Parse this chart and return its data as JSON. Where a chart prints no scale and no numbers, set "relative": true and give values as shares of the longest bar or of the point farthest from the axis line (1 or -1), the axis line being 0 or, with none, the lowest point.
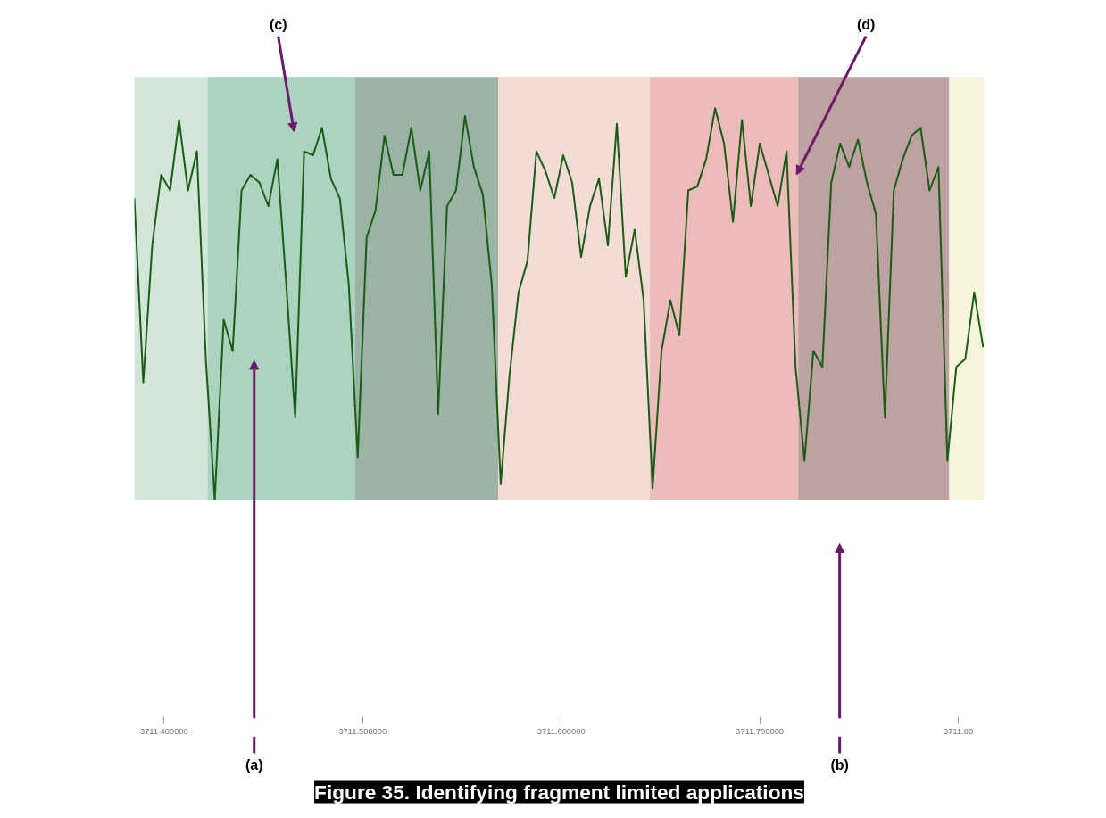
{
  "chart_data": {
    "type": "line",
    "title": "Figure 35. Identifying fragment limited applications",
    "relative": true,
    "x": [
      3711.385,
      3711.3895,
      3711.394,
      3711.3985,
      3711.403,
      3711.4075,
      3711.412,
      3711.4165,
      3711.421,
      3711.4255,
      3711.43,
      3711.4345,
      3711.439,
      3711.4435,
      3711.448,
      3711.4525,
      3711.457,
      3711.4615,
      3711.466,
      3711.4705,
      3711.475,
      3711.4795,
      3711.484,
      3711.4885,
      3711.493,
      3711.4975,
      3711.502,
      3711.5065,
      3711.511,
      3711.5155,
      3711.52,
      3711.5245,
      3711.529,
      3711.5335,
      3711.538,
      3711.5425,
      3711.547,
      3711.5515,
      3711.556,
      3711.5605,
      3711.565,
      3711.5695,
      3711.574,
      3711.5785,
      3711.583,
      3711.5875,
      3711.592,
      3711.5965,
      3711.601,
      3711.6055,
      3711.61,
      3711.6145,
      3711.619,
      3711.6235,
      3711.628,
      3711.6325,
      3711.637,
      3711.6415,
      3711.646,
      3711.6505,
      3711.655,
      3711.6595,
      3711.664,
      3711.6685,
      3711.673,
      3711.6775,
      3711.682,
      3711.6865,
      3711.691,
      3711.6955,
      3711.7,
      3711.7045,
      3711.709,
      3711.7135,
      3711.718,
      3711.7225,
      3711.727,
      3711.7315,
      3711.736,
      3711.7405,
      3711.745,
      3711.7495,
      3711.754,
      3711.7585,
      3711.763,
      3711.7675,
      3711.772,
      3711.7765,
      3711.781,
      3711.7855,
      3711.79,
      3711.7945,
      3711.799,
      3711.8035,
      3711.808,
      3711.8125
    ],
    "series": [
      {
        "color": "#1a5c14",
        "values": [
          0.77,
          0.3,
          0.65,
          0.83,
          0.79,
          0.97,
          0.79,
          0.89,
          0.36,
          0,
          0.46,
          0.38,
          0.79,
          0.83,
          0.81,
          0.75,
          0.87,
          0.55,
          0.21,
          0.89,
          0.88,
          0.95,
          0.82,
          0.77,
          0.55,
          0.11,
          0.67,
          0.74,
          0.93,
          0.83,
          0.83,
          0.95,
          0.79,
          0.89,
          0.22,
          0.75,
          0.79,
          0.98,
          0.85,
          0.78,
          0.55,
          0.04,
          0.32,
          0.53,
          0.61,
          0.89,
          0.84,
          0.77,
          0.88,
          0.81,
          0.62,
          0.75,
          0.82,
          0.65,
          0.96,
          0.57,
          0.69,
          0.51,
          0.03,
          0.38,
          0.51,
          0.42,
          0.79,
          0.8,
          0.87,
          1,
          0.91,
          0.71,
          0.97,
          0.75,
          0.91,
          0.83,
          0.75,
          0.89,
          0.34,
          0.1,
          0.38,
          0.34,
          0.81,
          0.91,
          0.85,
          0.92,
          0.81,
          0.73,
          0.21,
          0.79,
          0.87,
          0.93,
          0.95,
          0.79,
          0.85,
          0.1,
          0.34,
          0.36,
          0.53,
          0.39
        ]
      }
    ],
    "xlim": [
      3711.385,
      3711.813
    ],
    "xticks": [
      {
        "value": 3711.4,
        "label": "3711.400000"
      },
      {
        "value": 3711.5,
        "label": "3711.500000"
      },
      {
        "value": 3711.6,
        "label": "3711.600000"
      },
      {
        "value": 3711.7,
        "label": "3711.700000"
      },
      {
        "value": 3711.8,
        "label": "3711.80"
      }
    ],
    "tick_labels": "x",
    "bands": [
      {
        "axis": "x",
        "from": 3711.385,
        "to": 3711.422,
        "color": "#cde2d5"
      },
      {
        "axis": "x",
        "from": 3711.422,
        "to": 3711.4961,
        "color": "#9ccdb4"
      },
      {
        "axis": "x",
        "from": 3711.4961,
        "to": 3711.5682,
        "color": "#87a593"
      },
      {
        "axis": "x",
        "from": 3711.5682,
        "to": 3711.6447,
        "color": "#f4d8d0"
      },
      {
        "axis": "x",
        "from": 3711.6447,
        "to": 3711.7194,
        "color": "#efafb1"
      },
      {
        "axis": "x",
        "from": 3711.7194,
        "to": 3711.7954,
        "color": "#b38f8e"
      },
      {
        "axis": "x",
        "from": 3711.7954,
        "to": 3711.813,
        "color": "#faf6d8"
      }
    ],
    "annotations": [
      "(a)",
      "(b)",
      "(c)",
      {
        "text": "(d)",
        "x": 3711.7185,
        "y": 0.83
      }
    ]
  }
}
